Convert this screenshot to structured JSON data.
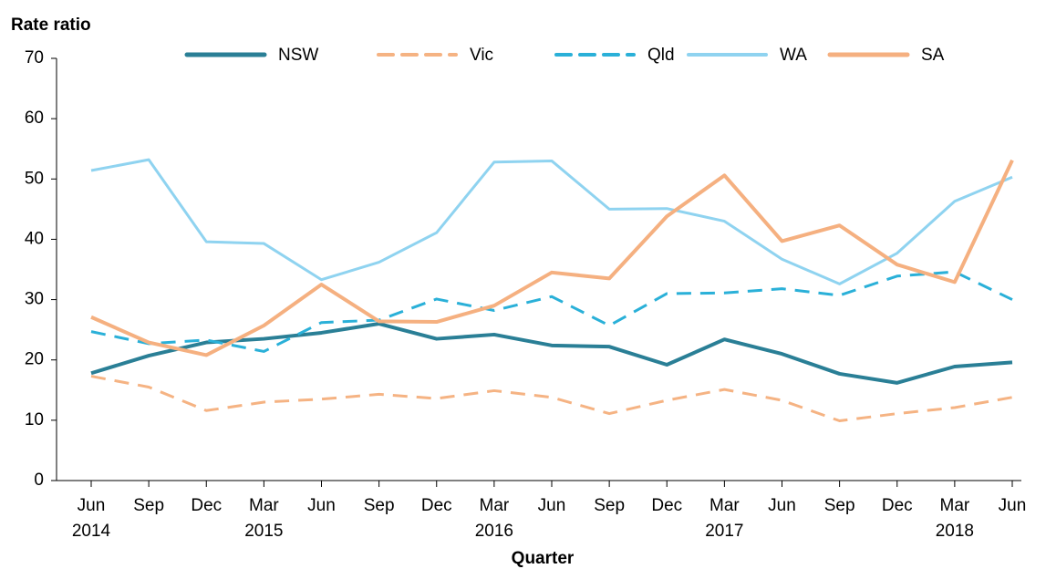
{
  "chart_data": {
    "type": "line",
    "title": "Rate ratio",
    "x_label": "Quarter",
    "categories": [
      "Jun 2014",
      "Sep",
      "Dec",
      "Mar 2015",
      "Jun",
      "Sep",
      "Dec",
      "Mar 2016",
      "Jun",
      "Sep",
      "Dec",
      "Mar 2017",
      "Jun",
      "Sep",
      "Dec",
      "Mar 2018",
      "Jun"
    ],
    "series": [
      {
        "name": "NSW",
        "color": "#2a7f96",
        "style": "solid",
        "width": 4,
        "values": [
          17.8,
          20.7,
          22.9,
          23.5,
          24.5,
          26.0,
          23.5,
          24.2,
          22.4,
          22.2,
          19.2,
          23.4,
          21.0,
          17.7,
          16.2,
          18.9,
          19.6
        ]
      },
      {
        "name": "Vic",
        "color": "#f5b383",
        "style": "dashed",
        "width": 3,
        "values": [
          17.3,
          15.5,
          11.6,
          13.0,
          13.5,
          14.3,
          13.6,
          14.9,
          13.8,
          11.1,
          13.3,
          15.1,
          13.3,
          9.9,
          11.1,
          12.1,
          13.8
        ]
      },
      {
        "name": "Qld",
        "color": "#2ab0d8",
        "style": "dashed",
        "width": 3,
        "values": [
          24.7,
          22.7,
          23.3,
          21.4,
          26.2,
          26.6,
          30.1,
          28.2,
          30.5,
          25.7,
          31.0,
          31.1,
          31.8,
          30.7,
          33.9,
          34.6,
          30.0
        ]
      },
      {
        "name": "WA",
        "color": "#8fd3f0",
        "style": "solid",
        "width": 3,
        "values": [
          51.4,
          53.2,
          39.6,
          39.3,
          33.3,
          36.2,
          41.1,
          52.8,
          53.0,
          45.0,
          45.1,
          43.0,
          36.7,
          32.6,
          37.7,
          46.3,
          50.3
        ]
      },
      {
        "name": "SA",
        "color": "#f5b080",
        "style": "solid",
        "width": 4,
        "values": [
          27.1,
          22.9,
          20.8,
          25.7,
          32.5,
          26.4,
          26.3,
          29.0,
          34.5,
          33.5,
          43.8,
          50.6,
          39.7,
          42.3,
          35.8,
          32.9,
          53.1
        ]
      }
    ],
    "ylim": [
      0,
      70
    ],
    "yticks": [
      0,
      10,
      20,
      30,
      40,
      50,
      60,
      70
    ],
    "grid": false,
    "legend": "top"
  }
}
